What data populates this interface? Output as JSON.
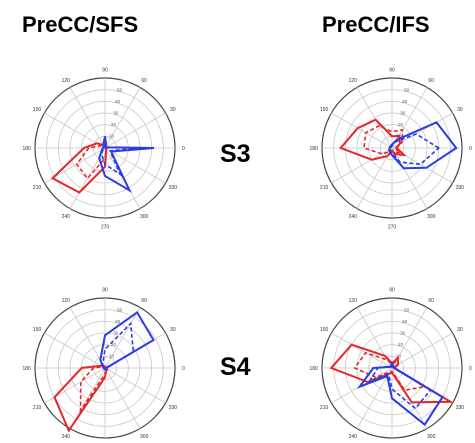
{
  "column_titles": {
    "left": "PreCC/SFS",
    "right": "PreCC/IFS"
  },
  "row_labels": {
    "top": "S3",
    "bottom": "S4"
  },
  "colors": {
    "red": "#e8262a",
    "blue": "#2b3ce6",
    "grid": "#c8c8c8"
  },
  "chart_data": [
    {
      "type": "polar",
      "subject": "S3",
      "region": "PreCC/SFS",
      "angles_deg": [
        0,
        30,
        60,
        90,
        120,
        150,
        180,
        210,
        240,
        270,
        300,
        330
      ],
      "angle_tick_labels": [
        "0",
        "30",
        "60",
        "90",
        "120",
        "150",
        "180",
        "210",
        "240",
        "270",
        "300",
        "330"
      ],
      "radial_ticks": [
        10,
        20,
        30,
        40,
        50
      ],
      "rlim": [
        0,
        60
      ],
      "series": [
        {
          "color": "red",
          "style": "solid",
          "r": [
            2,
            1,
            2,
            9,
            3,
            8,
            18,
            52,
            44,
            16,
            2,
            1
          ]
        },
        {
          "color": "red",
          "style": "dashed",
          "r": [
            2,
            1,
            2,
            5,
            2,
            4,
            14,
            28,
            30,
            9,
            2,
            1
          ]
        },
        {
          "color": "blue",
          "style": "solid",
          "r": [
            42,
            1,
            2,
            10,
            3,
            1,
            2,
            3,
            10,
            24,
            42,
            6
          ]
        },
        {
          "color": "blue",
          "style": "dashed",
          "r": [
            30,
            1,
            1,
            4,
            1,
            1,
            2,
            2,
            6,
            14,
            26,
            5
          ]
        }
      ]
    },
    {
      "type": "polar",
      "subject": "S3",
      "region": "PreCC/IFS",
      "angles_deg": [
        0,
        30,
        60,
        90,
        120,
        150,
        180,
        210,
        240,
        270,
        300,
        330
      ],
      "angle_tick_labels": [
        "0",
        "30",
        "60",
        "90",
        "120",
        "150",
        "180",
        "210",
        "240",
        "270",
        "300",
        "330"
      ],
      "radial_ticks": [
        10,
        20,
        30,
        40,
        50
      ],
      "rlim": [
        0,
        60
      ],
      "series": [
        {
          "color": "red",
          "style": "solid",
          "r": [
            4,
            8,
            12,
            10,
            28,
            34,
            44,
            20,
            8,
            3,
            6,
            12
          ]
        },
        {
          "color": "red",
          "style": "dashed",
          "r": [
            3,
            10,
            18,
            14,
            22,
            26,
            24,
            10,
            4,
            2,
            4,
            8
          ]
        },
        {
          "color": "blue",
          "style": "solid",
          "r": [
            55,
            44,
            8,
            3,
            2,
            2,
            2,
            3,
            4,
            6,
            20,
            34
          ]
        },
        {
          "color": "blue",
          "style": "dashed",
          "r": [
            40,
            24,
            6,
            2,
            1,
            1,
            2,
            2,
            3,
            4,
            14,
            28
          ]
        }
      ]
    },
    {
      "type": "polar",
      "subject": "S4",
      "region": "PreCC/SFS",
      "angles_deg": [
        0,
        30,
        60,
        90,
        120,
        150,
        180,
        210,
        240,
        270,
        300,
        330
      ],
      "angle_tick_labels": [
        "0",
        "30",
        "60",
        "90",
        "120",
        "150",
        "180",
        "210",
        "240",
        "270",
        "300",
        "330"
      ],
      "radial_ticks": [
        10,
        20,
        30,
        40,
        50
      ],
      "rlim": [
        0,
        60
      ],
      "series": [
        {
          "color": "red",
          "style": "solid",
          "r": [
            1,
            1,
            1,
            1,
            2,
            4,
            20,
            50,
            62,
            8,
            2,
            1
          ]
        },
        {
          "color": "red",
          "style": "dashed",
          "r": [
            1,
            1,
            1,
            1,
            1,
            2,
            10,
            24,
            42,
            5,
            1,
            1
          ]
        },
        {
          "color": "blue",
          "style": "solid",
          "r": [
            1,
            48,
            55,
            28,
            8,
            2,
            1,
            1,
            1,
            1,
            1,
            2
          ]
        },
        {
          "color": "blue",
          "style": "dashed",
          "r": [
            1,
            28,
            44,
            16,
            4,
            1,
            1,
            1,
            1,
            1,
            1,
            1
          ]
        }
      ]
    },
    {
      "type": "polar",
      "subject": "S4",
      "region": "PreCC/IFS",
      "angles_deg": [
        0,
        30,
        60,
        90,
        120,
        150,
        180,
        210,
        240,
        270,
        300,
        330
      ],
      "angle_tick_labels": [
        "0",
        "30",
        "60",
        "90",
        "120",
        "150",
        "180",
        "210",
        "240",
        "270",
        "300",
        "330"
      ],
      "radial_ticks": [
        10,
        20,
        30,
        40,
        50
      ],
      "rlim": [
        0,
        60
      ],
      "series": [
        {
          "color": "red",
          "style": "solid",
          "r": [
            2,
            6,
            10,
            4,
            12,
            40,
            52,
            24,
            6,
            4,
            34,
            58
          ]
        },
        {
          "color": "red",
          "style": "dashed",
          "r": [
            2,
            4,
            6,
            3,
            8,
            26,
            32,
            16,
            4,
            3,
            22,
            32
          ]
        },
        {
          "color": "blue",
          "style": "solid",
          "r": [
            2,
            2,
            2,
            4,
            2,
            2,
            16,
            32,
            8,
            26,
            56,
            50
          ]
        },
        {
          "color": "blue",
          "style": "dashed",
          "r": [
            2,
            1,
            2,
            3,
            1,
            2,
            12,
            22,
            6,
            18,
            40,
            38
          ]
        }
      ]
    }
  ]
}
